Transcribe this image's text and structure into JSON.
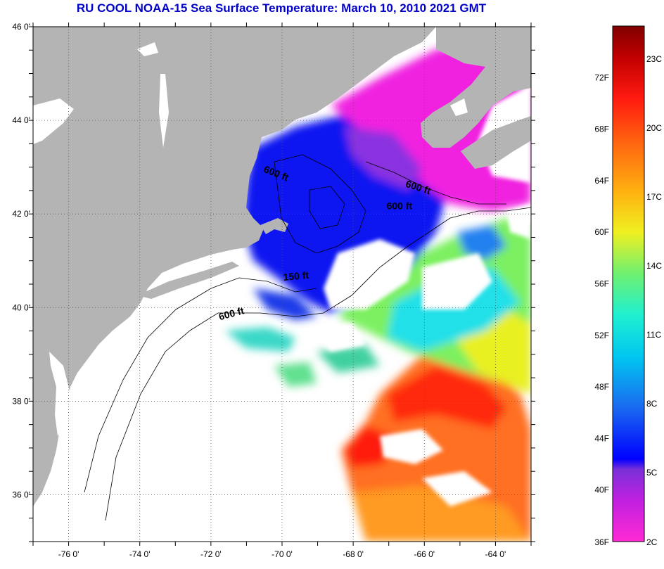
{
  "title": "RU COOL  NOAA-15  Sea Surface Temperature:  March 10, 2010 2021 GMT",
  "map": {
    "lon_range": [
      -77,
      -63
    ],
    "lat_range": [
      35,
      46
    ],
    "lon_ticks": [
      {
        "value": -76,
        "label": "-76 0'"
      },
      {
        "value": -74,
        "label": "-74 0'"
      },
      {
        "value": -72,
        "label": "-72 0'"
      },
      {
        "value": -70,
        "label": "-70 0'"
      },
      {
        "value": -68,
        "label": "-68 0'"
      },
      {
        "value": -66,
        "label": "-66 0'"
      },
      {
        "value": -64,
        "label": "-64 0'"
      }
    ],
    "lat_ticks": [
      {
        "value": 46,
        "label": "46 0'"
      },
      {
        "value": 44,
        "label": "44 0'"
      },
      {
        "value": 42,
        "label": "42 0'"
      },
      {
        "value": 40,
        "label": "40 0'"
      },
      {
        "value": 38,
        "label": "38 0'"
      },
      {
        "value": 36,
        "label": "36 0'"
      }
    ],
    "contour_labels": [
      {
        "text": "600 ft",
        "lon": -70.2,
        "lat": 42.8,
        "rotate": 22
      },
      {
        "text": "600 ft",
        "lon": -66.2,
        "lat": 42.5,
        "rotate": 18
      },
      {
        "text": "600 ft",
        "lon": -66.7,
        "lat": 42.1,
        "rotate": 0
      },
      {
        "text": "150 ft",
        "lon": -69.6,
        "lat": 40.6,
        "rotate": -5
      },
      {
        "text": "600 ft",
        "lon": -71.4,
        "lat": 39.8,
        "rotate": -15
      }
    ],
    "colors": {
      "land": "#b4b4b4",
      "no_data": "#ffffff",
      "cold": "#0a12f0",
      "gulf_stream": "#ff4d10"
    }
  },
  "colorbar": {
    "fahrenheit_labels": [
      "36F",
      "40F",
      "44F",
      "48F",
      "52F",
      "56F",
      "60F",
      "64F",
      "68F",
      "72F"
    ],
    "celsius_labels": [
      "2C",
      "5C",
      "8C",
      "11C",
      "14C",
      "17C",
      "20C",
      "23C"
    ]
  }
}
